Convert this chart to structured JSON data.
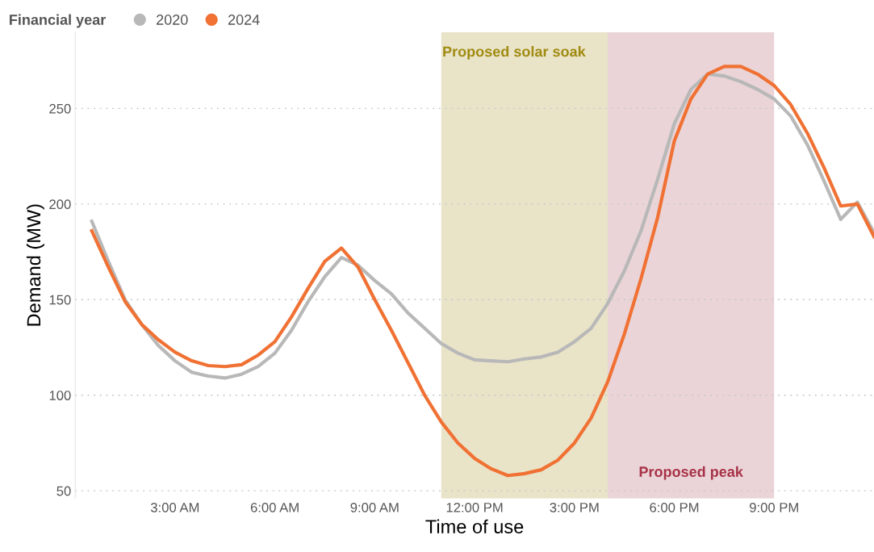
{
  "chart_data": {
    "type": "line",
    "xlabel": "Time of use",
    "ylabel": "Demand (MW)",
    "legend_title": "Financial year",
    "legend": "top left",
    "grid": "y",
    "marker": "none",
    "line_style": "solid",
    "x": [
      0.5,
      1,
      1.5,
      2,
      2.5,
      3,
      3.5,
      4,
      4.5,
      5,
      5.5,
      6,
      6.5,
      7,
      7.5,
      8,
      8.5,
      9,
      9.5,
      10,
      10.5,
      11,
      11.5,
      12,
      12.5,
      13,
      13.5,
      14,
      14.5,
      15,
      15.5,
      16,
      16.5,
      17,
      17.5,
      18,
      18.5,
      19,
      19.5,
      20,
      20.5,
      21,
      21.5,
      22,
      22.5,
      23,
      23.5,
      24
    ],
    "series": [
      {
        "name": "2020",
        "color": "#b8b8b8",
        "values": [
          191,
          170,
          150,
          137,
          126,
          118,
          112,
          110,
          109,
          111,
          115,
          122,
          134,
          149,
          162,
          172,
          168,
          160,
          153,
          143,
          135,
          127,
          122,
          118.5,
          118,
          117.5,
          119,
          120,
          122.5,
          128,
          135,
          148,
          165,
          186,
          213,
          242,
          260,
          268,
          267,
          264,
          260,
          255,
          246,
          231,
          212,
          192,
          201,
          185
        ]
      },
      {
        "name": "2024",
        "color": "#f07133",
        "values": [
          186,
          167,
          149,
          137,
          129,
          122.5,
          118,
          115.5,
          115,
          116,
          121,
          128,
          141,
          156,
          170,
          177,
          167,
          150,
          134,
          117,
          100,
          86,
          75,
          67,
          61.5,
          58,
          59,
          61,
          66,
          75,
          88,
          107,
          132,
          161,
          193,
          233,
          255,
          268,
          272,
          272,
          268,
          262,
          252,
          237,
          219,
          199,
          200,
          183
        ]
      }
    ],
    "xlim": [
      0,
      24
    ],
    "ylim": [
      46,
      290
    ],
    "xticks": [
      {
        "value": 3,
        "label": "3:00 AM"
      },
      {
        "value": 6,
        "label": "6:00 AM"
      },
      {
        "value": 9,
        "label": "9:00 AM"
      },
      {
        "value": 12,
        "label": "12:00 PM"
      },
      {
        "value": 15,
        "label": "3:00 PM"
      },
      {
        "value": 18,
        "label": "6:00 PM"
      },
      {
        "value": 21,
        "label": "9:00 PM"
      }
    ],
    "yticks": [
      50,
      100,
      150,
      200,
      250
    ],
    "bands": [
      {
        "axis": "x",
        "from": 11,
        "to": 16,
        "label": "Proposed solar soak",
        "color": "#e9e3c8"
      },
      {
        "axis": "x",
        "from": 16,
        "to": 21,
        "label": "Proposed peak",
        "color": "#ead4d7"
      }
    ]
  }
}
